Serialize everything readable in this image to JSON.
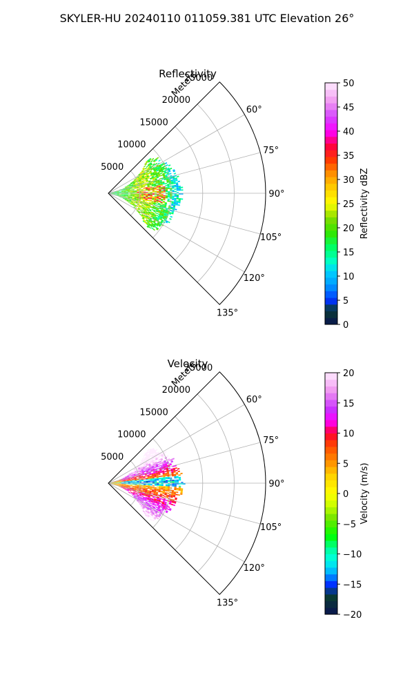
{
  "figure_title": "SKYLER-HU  20240110  011059.381 UTC Elevation 26°",
  "chart_data": [
    {
      "type": "heatmap",
      "subtype": "polar-ppi-sector",
      "title": "Reflectivity",
      "radial_label": "Meters",
      "range_ticks": [
        5000,
        10000,
        15000,
        20000,
        25000
      ],
      "range_tick_labels": [
        "5000",
        "10000",
        "15000",
        "20000",
        "25000"
      ],
      "r_max": 25000,
      "azimuth_range": [
        45,
        135
      ],
      "azimuth_ticks": [
        60,
        75,
        90,
        105,
        120,
        135
      ],
      "azimuth_tick_labels": [
        "60°",
        "75°",
        "90°",
        "105°",
        "120°",
        "135°"
      ],
      "grid": true,
      "data_extent_m": 12000,
      "colorbar": {
        "label": "Reflectivity dBZ",
        "range": [
          0,
          50
        ],
        "ticks": [
          0,
          5,
          10,
          15,
          20,
          25,
          30,
          35,
          40,
          45,
          50
        ],
        "tick_labels": [
          "0",
          "5",
          "10",
          "15",
          "20",
          "25",
          "30",
          "35",
          "40",
          "45",
          "50"
        ],
        "stops": [
          [
            0,
            "#0a1450"
          ],
          [
            3,
            "#0a3c32"
          ],
          [
            5,
            "#0032ff"
          ],
          [
            8,
            "#0096ff"
          ],
          [
            11,
            "#00d2ff"
          ],
          [
            13,
            "#00ffc8"
          ],
          [
            16,
            "#00ff64"
          ],
          [
            19,
            "#32e600"
          ],
          [
            22,
            "#82dc00"
          ],
          [
            25,
            "#ffff00"
          ],
          [
            28,
            "#ffd200"
          ],
          [
            31,
            "#ff9600"
          ],
          [
            34,
            "#ff3c00"
          ],
          [
            37,
            "#ff0040"
          ],
          [
            40,
            "#ff00ff"
          ],
          [
            43,
            "#d246ff"
          ],
          [
            46,
            "#f096f0"
          ],
          [
            50,
            "#ffebff"
          ]
        ]
      },
      "field_description": "mostly 15-25 dBZ (green/cyan) with 25-38 dBZ cores (yellow/red) near 90°"
    },
    {
      "type": "heatmap",
      "subtype": "polar-ppi-sector",
      "title": "Velocity",
      "radial_label": "Meters",
      "range_ticks": [
        5000,
        10000,
        15000,
        20000,
        25000
      ],
      "range_tick_labels": [
        "5000",
        "10000",
        "15000",
        "20000",
        "25000"
      ],
      "r_max": 25000,
      "azimuth_range": [
        45,
        135
      ],
      "azimuth_ticks": [
        60,
        75,
        90,
        105,
        120,
        135
      ],
      "azimuth_tick_labels": [
        "60°",
        "75°",
        "90°",
        "105°",
        "120°",
        "135°"
      ],
      "grid": true,
      "data_extent_m": 12000,
      "colorbar": {
        "label": "Velocity (m/s)",
        "range": [
          -20,
          20
        ],
        "ticks": [
          -20,
          -15,
          -10,
          -5,
          0,
          5,
          10,
          15,
          20
        ],
        "tick_labels": [
          "−20",
          "−15",
          "−10",
          "−5",
          "0",
          "5",
          "10",
          "15",
          "20"
        ],
        "stops": [
          [
            -20,
            "#0a1450"
          ],
          [
            -17,
            "#0a3c32"
          ],
          [
            -15,
            "#0032ff"
          ],
          [
            -13,
            "#00b4ff"
          ],
          [
            -11,
            "#00ffe6"
          ],
          [
            -9,
            "#00ff96"
          ],
          [
            -7,
            "#00ff00"
          ],
          [
            -4,
            "#78e600"
          ],
          [
            -2,
            "#c8ff00"
          ],
          [
            0,
            "#ffff00"
          ],
          [
            3,
            "#ffd200"
          ],
          [
            5,
            "#ff9600"
          ],
          [
            8,
            "#ff4600"
          ],
          [
            10,
            "#ff0032"
          ],
          [
            12,
            "#ff00ff"
          ],
          [
            14,
            "#c832ff"
          ],
          [
            17,
            "#f096f0"
          ],
          [
            20,
            "#ffebff"
          ]
        ]
      },
      "field_description": "dipole: +8 to +16 m/s (red/magenta) toward 75°, −10 to −14 m/s (cyan) along 90°, +5 to +12 m/s (orange/red) toward 105°"
    }
  ]
}
